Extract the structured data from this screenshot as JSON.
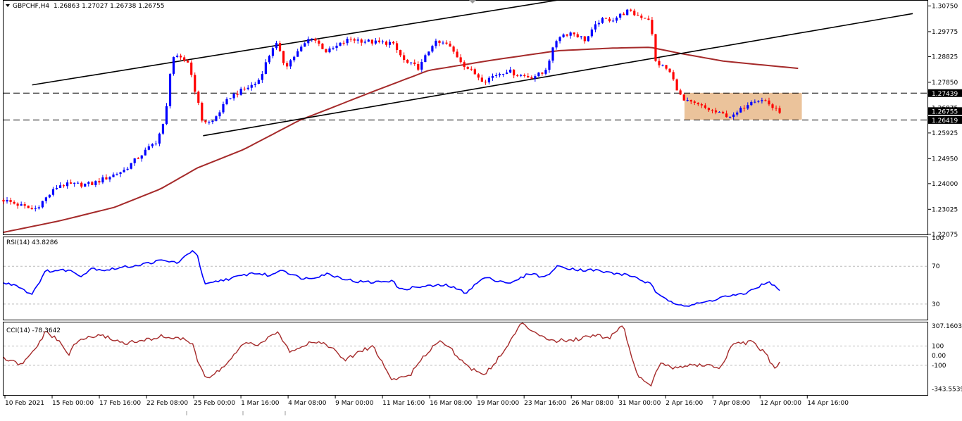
{
  "symbol_header": {
    "symbol": "GBPCHF,H4",
    "ohlc": "1.26863 1.27027 1.26738 1.26755"
  },
  "colors": {
    "bull": "#0000ff",
    "bear": "#ff0000",
    "ma": "#a52a2a",
    "rsi": "#0000ff",
    "cci": "#a52a2a",
    "zone": "#e8b98a"
  },
  "chart_data": [
    {
      "type": "candlestick",
      "title": "GBPCHF,H4",
      "ylim": [
        1.2207,
        1.3095
      ],
      "yticks": [
        "1.30750",
        "1.29775",
        "1.28825",
        "1.27850",
        "1.26875",
        "1.25925",
        "1.24950",
        "1.24000",
        "1.23025",
        "1.22075"
      ],
      "price_labels": [
        {
          "value": 1.27439,
          "text": "1.27439",
          "style": "dark"
        },
        {
          "value": 1.26875,
          "text": "1.26875",
          "style": "plain"
        },
        {
          "value": 1.26755,
          "text": "1.26755",
          "style": "dark"
        },
        {
          "value": 1.26419,
          "text": "1.26419",
          "style": "dark"
        }
      ],
      "hlines": [
        1.27439,
        1.26419
      ],
      "zone": {
        "x_start": 0.737,
        "x_end": 0.864,
        "low": 1.2643,
        "high": 1.2745
      },
      "trendlines": [
        {
          "x1": 0.031,
          "y1": 1.2775,
          "x2": 0.615,
          "y2": 1.3106
        },
        {
          "x1": 0.216,
          "y1": 1.2582,
          "x2": 0.984,
          "y2": 1.3046
        }
      ],
      "ma_knots": [
        [
          0.0,
          1.2215
        ],
        [
          0.06,
          1.2258
        ],
        [
          0.12,
          1.231
        ],
        [
          0.17,
          1.238
        ],
        [
          0.21,
          1.246
        ],
        [
          0.26,
          1.253
        ],
        [
          0.32,
          1.264
        ],
        [
          0.4,
          1.275
        ],
        [
          0.46,
          1.283
        ],
        [
          0.53,
          1.287
        ],
        [
          0.6,
          1.2905
        ],
        [
          0.66,
          1.2915
        ],
        [
          0.7,
          1.2918
        ],
        [
          0.735,
          1.2893
        ],
        [
          0.78,
          1.2865
        ],
        [
          0.86,
          1.2838
        ]
      ],
      "price_knots": [
        [
          0.0,
          1.2338
        ],
        [
          0.033,
          1.23
        ],
        [
          0.06,
          1.2395
        ],
        [
          0.095,
          1.2398
        ],
        [
          0.13,
          1.245
        ],
        [
          0.165,
          1.256
        ],
        [
          0.175,
          1.264
        ],
        [
          0.182,
          1.2885
        ],
        [
          0.2,
          1.2862
        ],
        [
          0.215,
          1.264
        ],
        [
          0.225,
          1.263
        ],
        [
          0.245,
          1.273
        ],
        [
          0.275,
          1.2785
        ],
        [
          0.294,
          1.294
        ],
        [
          0.305,
          1.2845
        ],
        [
          0.333,
          1.296
        ],
        [
          0.35,
          1.29
        ],
        [
          0.375,
          1.295
        ],
        [
          0.405,
          1.2935
        ],
        [
          0.42,
          1.2935
        ],
        [
          0.435,
          1.286
        ],
        [
          0.45,
          1.284
        ],
        [
          0.465,
          1.2935
        ],
        [
          0.48,
          1.293
        ],
        [
          0.5,
          1.2845
        ],
        [
          0.52,
          1.279
        ],
        [
          0.53,
          1.281
        ],
        [
          0.545,
          1.283
        ],
        [
          0.555,
          1.2815
        ],
        [
          0.57,
          1.2805
        ],
        [
          0.585,
          1.282
        ],
        [
          0.6,
          1.296
        ],
        [
          0.615,
          1.2975
        ],
        [
          0.63,
          1.2945
        ],
        [
          0.645,
          1.302
        ],
        [
          0.66,
          1.3025
        ],
        [
          0.675,
          1.3055
        ],
        [
          0.685,
          1.304
        ],
        [
          0.7,
          1.3025
        ],
        [
          0.705,
          1.2865
        ],
        [
          0.72,
          1.283
        ],
        [
          0.735,
          1.2715
        ],
        [
          0.75,
          1.27
        ],
        [
          0.775,
          1.2665
        ],
        [
          0.79,
          1.2655
        ],
        [
          0.81,
          1.272
        ],
        [
          0.825,
          1.2715
        ],
        [
          0.835,
          1.268
        ],
        [
          0.84,
          1.2676
        ]
      ],
      "xticks": [
        "10 Feb 2021",
        "15 Feb 00:00",
        "17 Feb 16:00",
        "22 Feb 08:00",
        "25 Feb 00:00",
        "1 Mar 16:00",
        "4 Mar 08:00",
        "9 Mar 00:00",
        "11 Mar 16:00",
        "16 Mar 08:00",
        "19 Mar 00:00",
        "23 Mar 16:00",
        "26 Mar 08:00",
        "31 Mar 00:00",
        "2 Apr 16:00",
        "7 Apr 08:00",
        "12 Apr 00:00",
        "14 Apr 16:00"
      ]
    },
    {
      "type": "line",
      "title": "RSI(14) 43.8286",
      "ylim": [
        15,
        100
      ],
      "yticks": [
        "100",
        "70",
        "30"
      ],
      "levels": [
        70,
        30
      ],
      "knots": [
        [
          0.0,
          52
        ],
        [
          0.015,
          50
        ],
        [
          0.03,
          40
        ],
        [
          0.046,
          65
        ],
        [
          0.07,
          66
        ],
        [
          0.085,
          60
        ],
        [
          0.095,
          68
        ],
        [
          0.11,
          66
        ],
        [
          0.13,
          69
        ],
        [
          0.15,
          72
        ],
        [
          0.17,
          76
        ],
        [
          0.19,
          74
        ],
        [
          0.205,
          88
        ],
        [
          0.21,
          80
        ],
        [
          0.218,
          50
        ],
        [
          0.235,
          55
        ],
        [
          0.25,
          58
        ],
        [
          0.27,
          63
        ],
        [
          0.29,
          60
        ],
        [
          0.3,
          67
        ],
        [
          0.32,
          58
        ],
        [
          0.33,
          57
        ],
        [
          0.35,
          62
        ],
        [
          0.38,
          54
        ],
        [
          0.4,
          53
        ],
        [
          0.42,
          55
        ],
        [
          0.43,
          45
        ],
        [
          0.44,
          47
        ],
        [
          0.46,
          49
        ],
        [
          0.48,
          50
        ],
        [
          0.5,
          42
        ],
        [
          0.52,
          58
        ],
        [
          0.55,
          52
        ],
        [
          0.57,
          63
        ],
        [
          0.585,
          58
        ],
        [
          0.6,
          70
        ],
        [
          0.625,
          66
        ],
        [
          0.64,
          66
        ],
        [
          0.65,
          64
        ],
        [
          0.665,
          62
        ],
        [
          0.68,
          60
        ],
        [
          0.7,
          51
        ],
        [
          0.71,
          38
        ],
        [
          0.725,
          32
        ],
        [
          0.74,
          28
        ],
        [
          0.76,
          32
        ],
        [
          0.78,
          38
        ],
        [
          0.8,
          40
        ],
        [
          0.82,
          50
        ],
        [
          0.83,
          53
        ],
        [
          0.84,
          44
        ]
      ]
    },
    {
      "type": "line",
      "title": "CCI(14) -78.3642",
      "ylim": [
        -400,
        330
      ],
      "yticks": [
        "307.1603",
        "100",
        "0.00",
        "-100",
        "-343.5539"
      ],
      "levels": [
        100,
        -100
      ],
      "knots": [
        [
          0.0,
          -30
        ],
        [
          0.02,
          -100
        ],
        [
          0.035,
          80
        ],
        [
          0.046,
          250
        ],
        [
          0.06,
          150
        ],
        [
          0.07,
          10
        ],
        [
          0.08,
          150
        ],
        [
          0.095,
          200
        ],
        [
          0.11,
          200
        ],
        [
          0.13,
          130
        ],
        [
          0.15,
          150
        ],
        [
          0.17,
          200
        ],
        [
          0.19,
          180
        ],
        [
          0.205,
          130
        ],
        [
          0.21,
          -50
        ],
        [
          0.22,
          -250
        ],
        [
          0.24,
          -100
        ],
        [
          0.26,
          120
        ],
        [
          0.28,
          120
        ],
        [
          0.295,
          250
        ],
        [
          0.31,
          50
        ],
        [
          0.335,
          150
        ],
        [
          0.35,
          120
        ],
        [
          0.37,
          -50
        ],
        [
          0.385,
          40
        ],
        [
          0.4,
          100
        ],
        [
          0.42,
          -250
        ],
        [
          0.44,
          -200
        ],
        [
          0.46,
          50
        ],
        [
          0.47,
          150
        ],
        [
          0.48,
          120
        ],
        [
          0.5,
          -100
        ],
        [
          0.52,
          -200
        ],
        [
          0.54,
          20
        ],
        [
          0.56,
          330
        ],
        [
          0.575,
          250
        ],
        [
          0.595,
          150
        ],
        [
          0.62,
          170
        ],
        [
          0.64,
          220
        ],
        [
          0.655,
          180
        ],
        [
          0.67,
          330
        ],
        [
          0.685,
          -180
        ],
        [
          0.7,
          -320
        ],
        [
          0.71,
          -80
        ],
        [
          0.725,
          -130
        ],
        [
          0.74,
          -100
        ],
        [
          0.76,
          -100
        ],
        [
          0.775,
          -130
        ],
        [
          0.79,
          120
        ],
        [
          0.81,
          140
        ],
        [
          0.825,
          20
        ],
        [
          0.835,
          -150
        ],
        [
          0.84,
          -80
        ]
      ]
    }
  ]
}
